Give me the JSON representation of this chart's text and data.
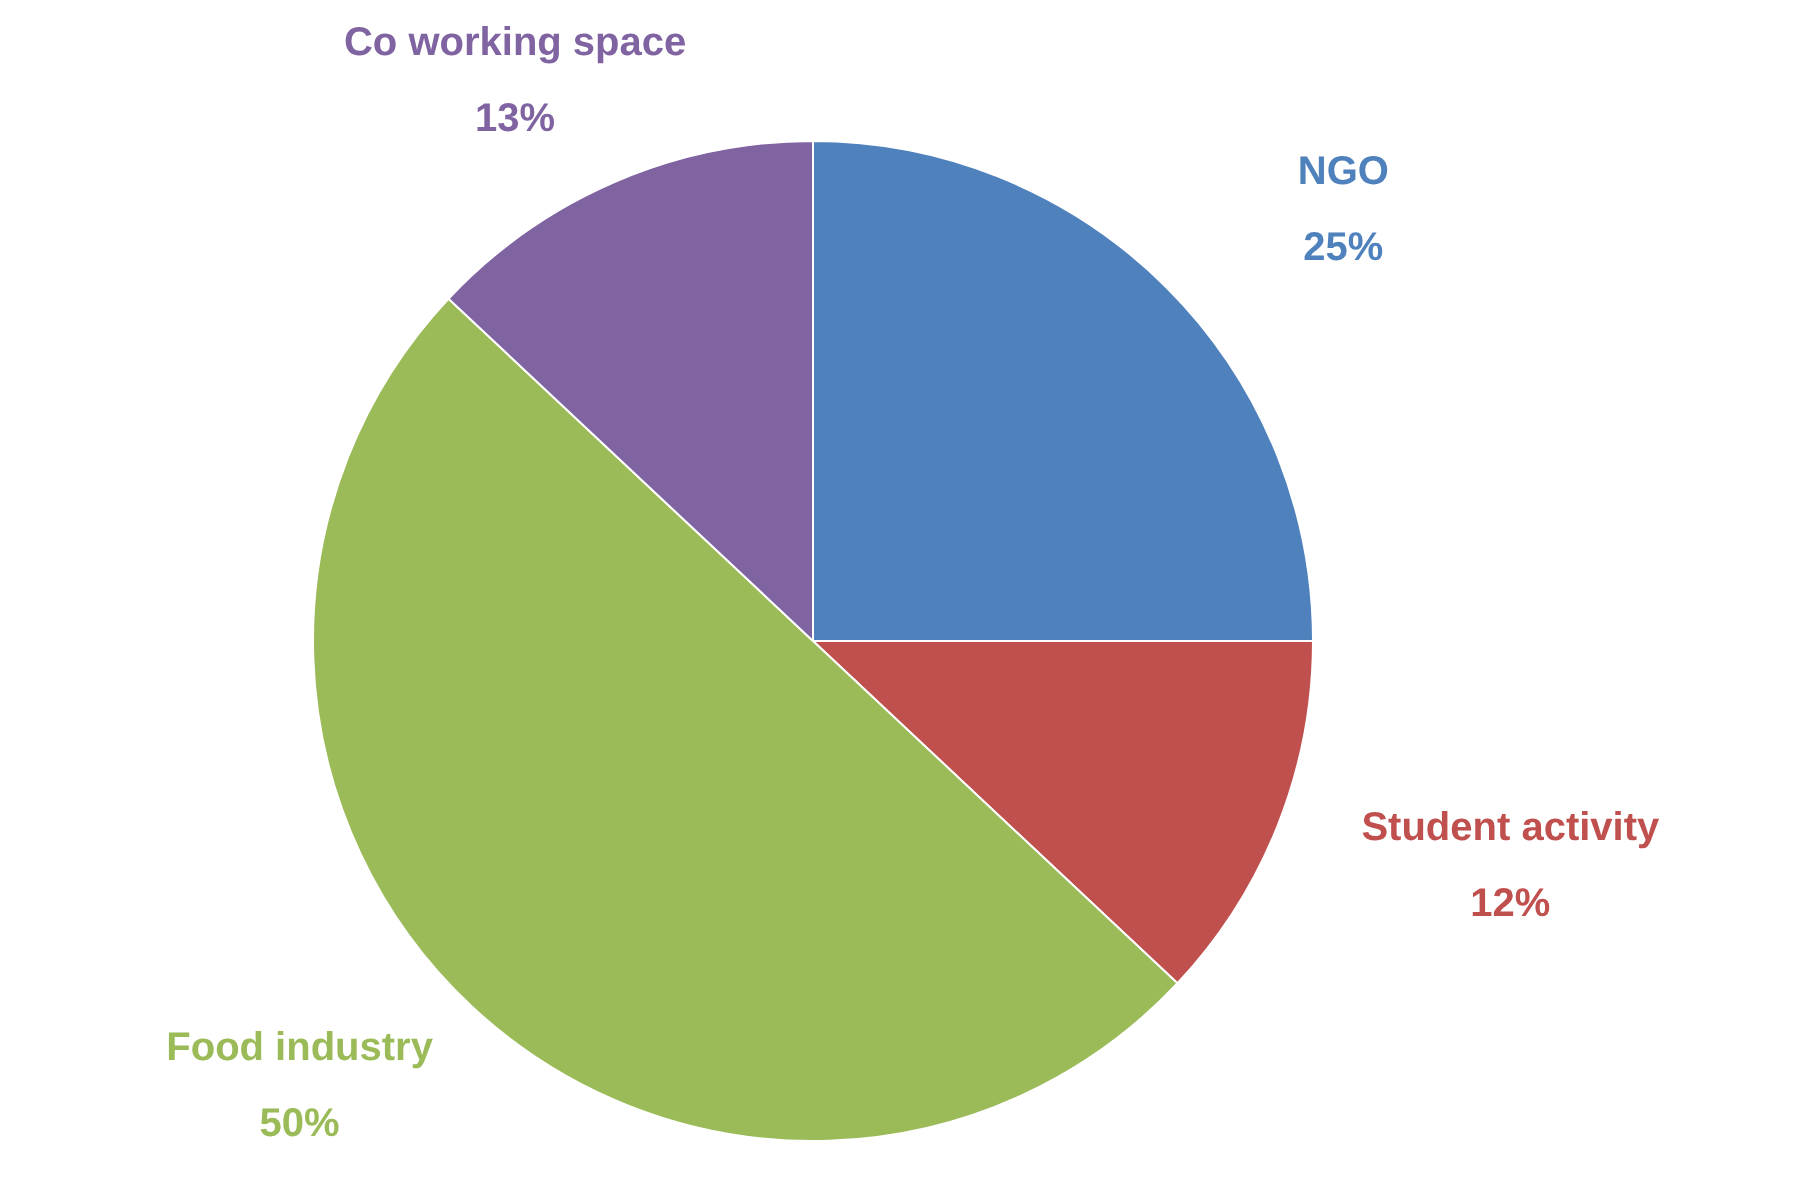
{
  "chart_data": {
    "type": "pie",
    "categories": [
      "NGO",
      "Student activity",
      "Food industry",
      "Co working space"
    ],
    "values": [
      25,
      12,
      50,
      13
    ],
    "colors": [
      "#4f81bd",
      "#c0504d",
      "#9bbb59",
      "#8064a2"
    ],
    "value_labels": [
      "25%",
      "12%",
      "50%",
      "13%"
    ]
  }
}
